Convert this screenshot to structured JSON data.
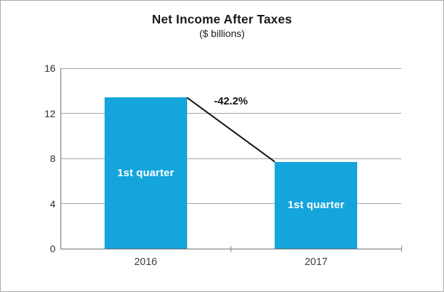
{
  "chart_data": {
    "type": "bar",
    "title": "Net Income After Taxes",
    "subtitle": "($ billions)",
    "categories": [
      "2016",
      "2017"
    ],
    "values": [
      13.4,
      7.7
    ],
    "bar_labels": [
      "1st quarter",
      "1st quarter"
    ],
    "annotation": {
      "text": "-42.2%",
      "style": "connector-line-between-bar-tops"
    },
    "xlabel": "",
    "ylabel": "",
    "ylim": [
      0,
      16
    ],
    "yticks": [
      0,
      4,
      8,
      12,
      16
    ],
    "grid": true,
    "legend": "none",
    "bar_color": "#14a5dc",
    "bar_label_color": "#ffffff",
    "connector_color": "#111111",
    "gridline_color": "#a3a3a3",
    "axis_color": "#6e6e6e"
  }
}
